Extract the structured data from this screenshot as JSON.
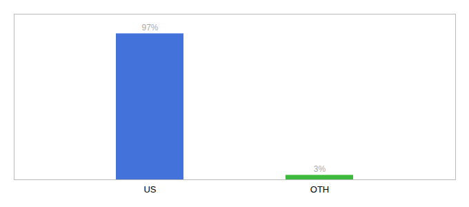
{
  "chart_data": {
    "type": "bar",
    "categories": [
      "US",
      "OTH"
    ],
    "values": [
      97,
      3
    ],
    "value_labels": [
      "97%",
      "3%"
    ],
    "colors": [
      "#4472db",
      "#3dba3d"
    ],
    "ylim": [
      0,
      110
    ],
    "grid": false,
    "data_labels": true,
    "tick_labels": "x"
  }
}
